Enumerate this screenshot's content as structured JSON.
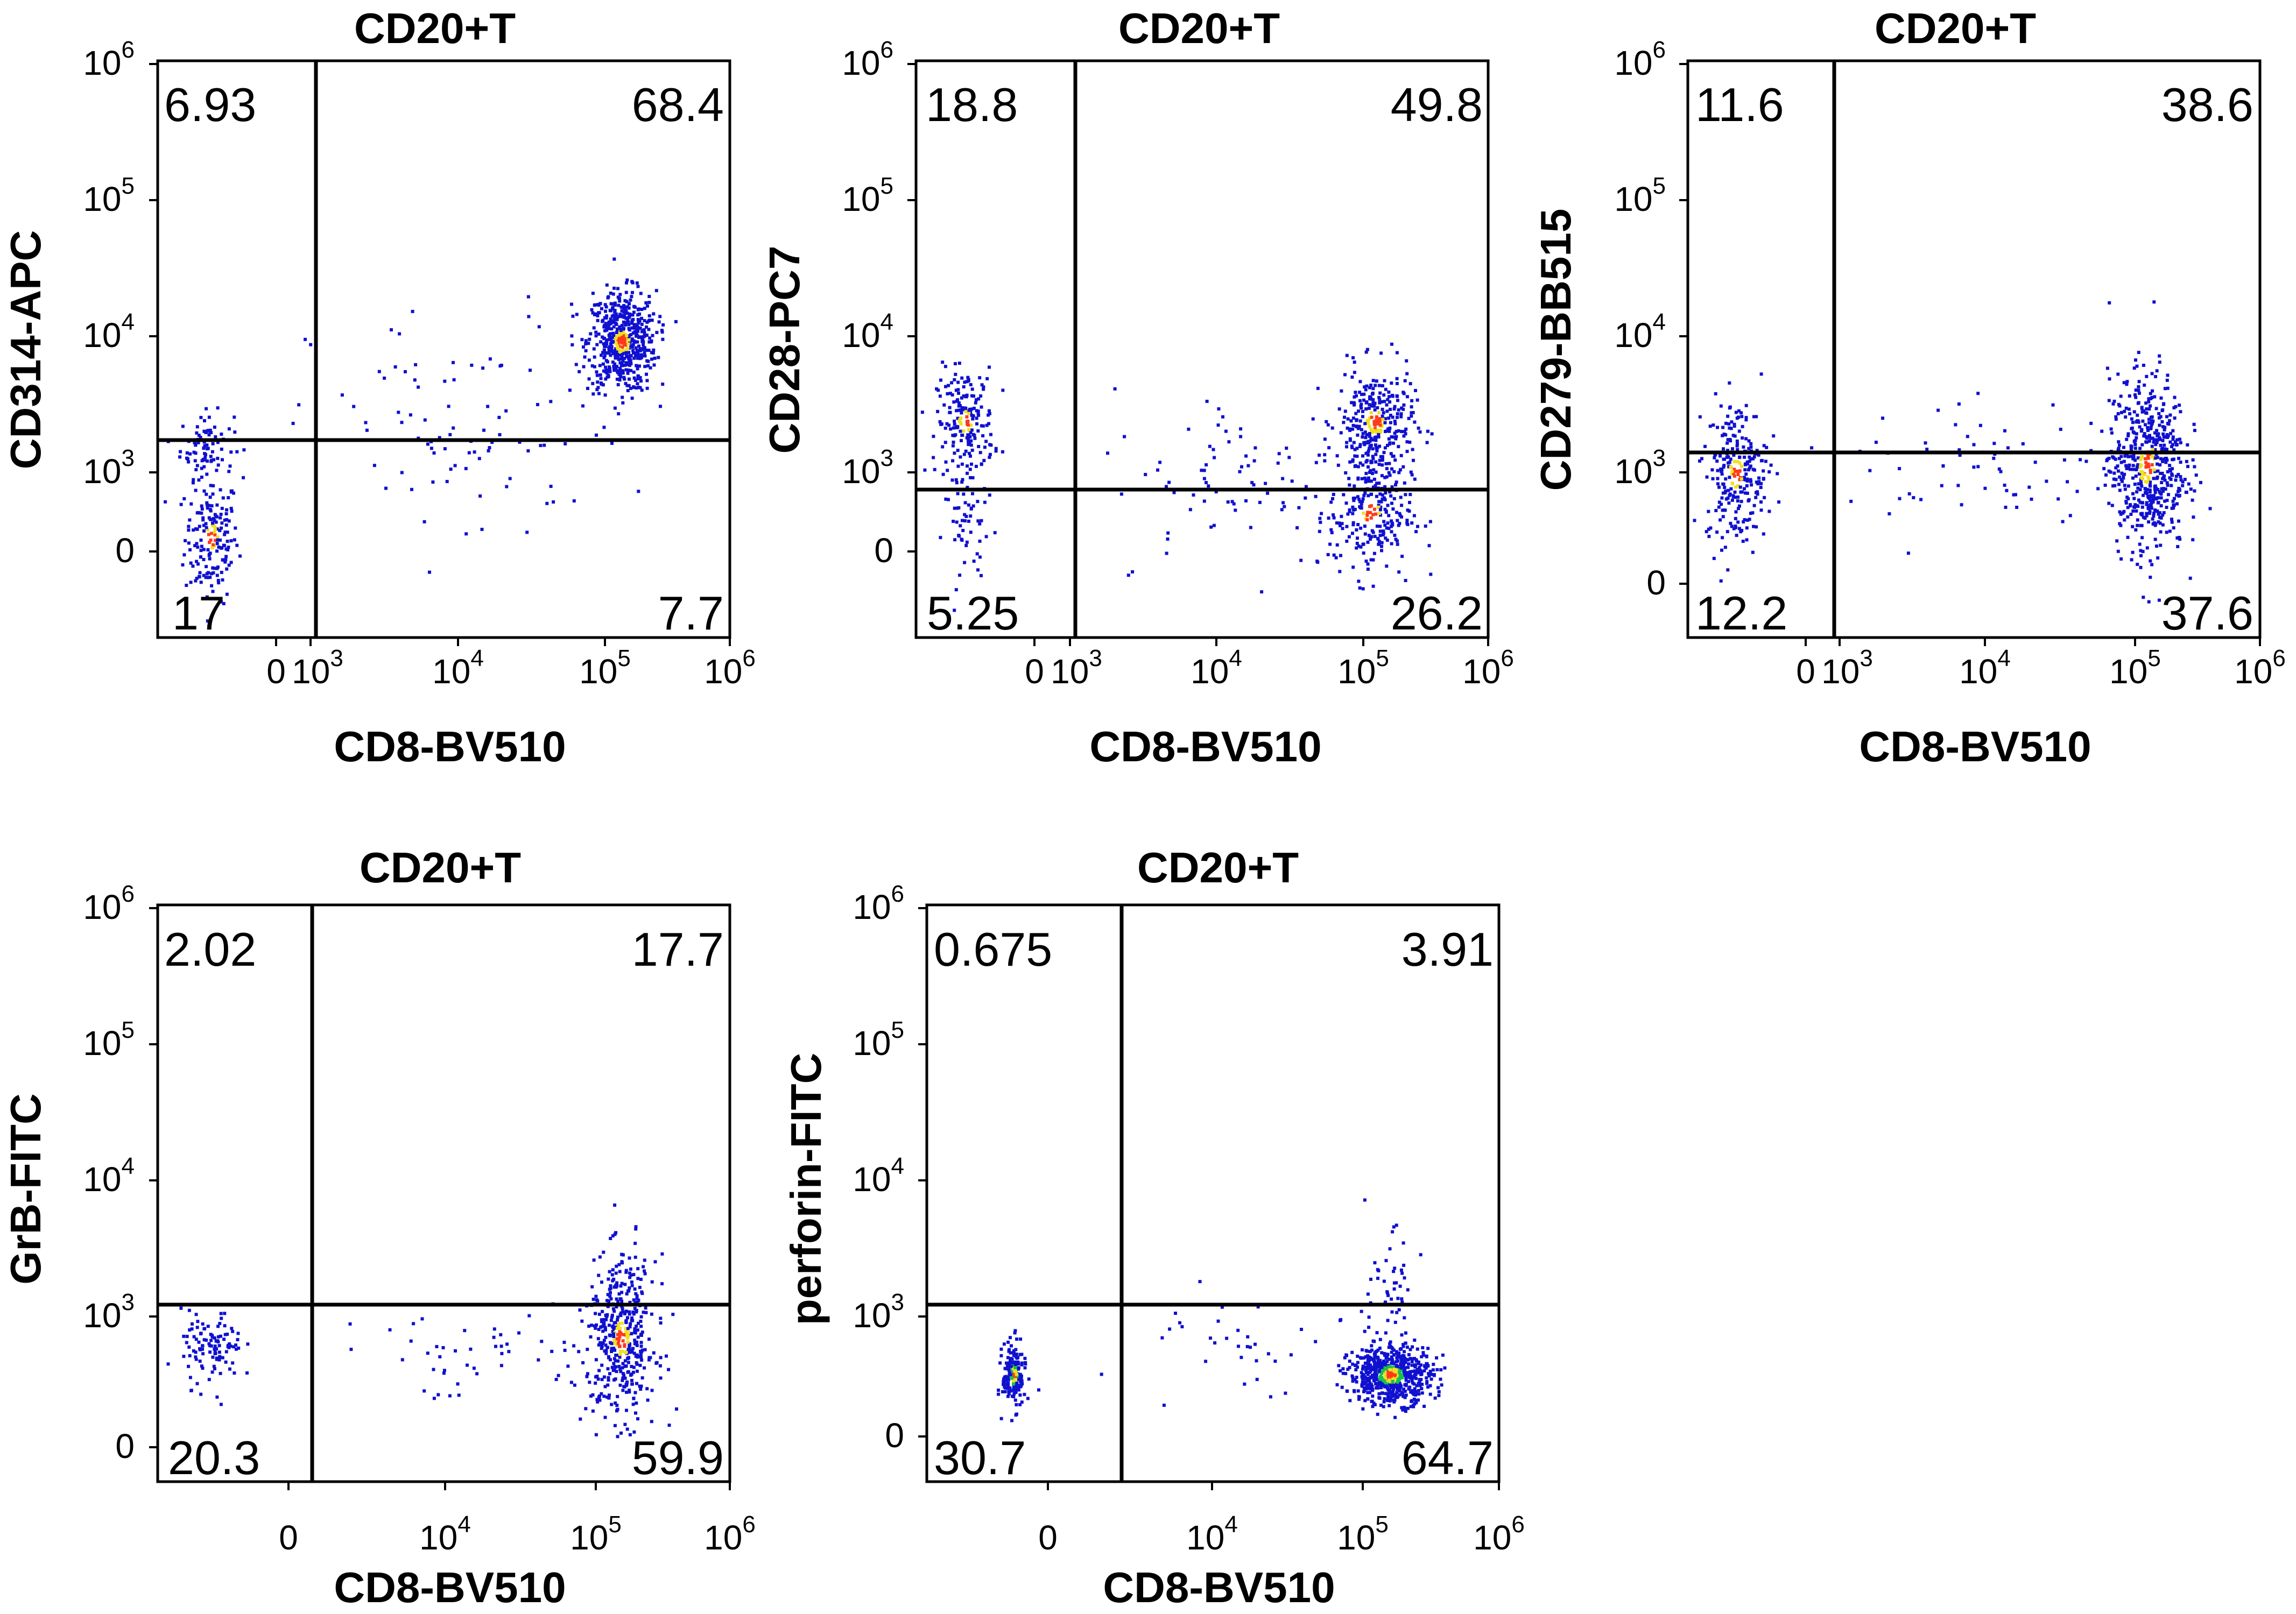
{
  "chart_data": [
    {
      "type": "scatter",
      "title": "CD20+T",
      "xlabel": "CD8-BV510",
      "ylabel": "CD314-APC",
      "x_ticks": [
        {
          "label": "0"
        },
        {
          "label": "10",
          "exp": "3"
        },
        {
          "label": "10",
          "exp": "4"
        },
        {
          "label": "10",
          "exp": "5"
        },
        {
          "label": "10",
          "exp": "6"
        }
      ],
      "y_ticks": [
        {
          "label": "0"
        },
        {
          "label": "10",
          "exp": "3"
        },
        {
          "label": "10",
          "exp": "4"
        },
        {
          "label": "10",
          "exp": "5"
        },
        {
          "label": "10",
          "exp": "6"
        }
      ],
      "quadrants": {
        "upper_left": "6.93",
        "upper_right": "68.4",
        "lower_left": "17",
        "lower_right": "7.7"
      },
      "gate": {
        "x_decades": 1.05,
        "y_decades": 1.8
      },
      "clusters": [
        {
          "x": 0.55,
          "y": 0.72,
          "sx": 0.14,
          "sy": 0.35,
          "n": 180
        },
        {
          "x": 0.5,
          "y": 1.75,
          "sx": 0.14,
          "sy": 0.18,
          "n": 80
        },
        {
          "x": 4.85,
          "y": 2.9,
          "sx": 0.18,
          "sy": 0.28,
          "n": 560
        },
        {
          "x": 3.2,
          "y": 1.9,
          "sx": 0.8,
          "sy": 0.7,
          "n": 90
        }
      ]
    },
    {
      "type": "scatter",
      "title": "CD20+T",
      "xlabel": "CD8-BV510",
      "ylabel": "CD28-PC7",
      "x_ticks": [
        {
          "label": "0"
        },
        {
          "label": "10",
          "exp": "3"
        },
        {
          "label": "10",
          "exp": "4"
        },
        {
          "label": "10",
          "exp": "5"
        },
        {
          "label": "10",
          "exp": "6"
        }
      ],
      "y_ticks": [
        {
          "label": "0"
        },
        {
          "label": "10",
          "exp": "3"
        },
        {
          "label": "10",
          "exp": "4"
        },
        {
          "label": "10",
          "exp": "5"
        },
        {
          "label": "10",
          "exp": "6"
        }
      ],
      "quadrants": {
        "upper_left": "18.8",
        "upper_right": "49.8",
        "lower_left": "5.25",
        "lower_right": "26.2"
      },
      "gate": {
        "x_decades": 1.05,
        "y_decades": 1.45
      },
      "clusters": [
        {
          "x": 0.5,
          "y": 2.0,
          "sx": 0.15,
          "sy": 0.3,
          "n": 200
        },
        {
          "x": 0.55,
          "y": 0.8,
          "sx": 0.13,
          "sy": 0.3,
          "n": 50
        },
        {
          "x": 4.8,
          "y": 2.0,
          "sx": 0.2,
          "sy": 0.3,
          "n": 300
        },
        {
          "x": 4.75,
          "y": 1.0,
          "sx": 0.22,
          "sy": 0.35,
          "n": 250
        },
        {
          "x": 3.4,
          "y": 1.4,
          "sx": 0.7,
          "sy": 0.5,
          "n": 80
        }
      ]
    },
    {
      "type": "scatter",
      "title": "CD20+T",
      "xlabel": "CD8-BV510",
      "ylabel": "CD279-BB515",
      "x_ticks": [
        {
          "label": "0"
        },
        {
          "label": "10",
          "exp": "3"
        },
        {
          "label": "10",
          "exp": "4"
        },
        {
          "label": "10",
          "exp": "5"
        },
        {
          "label": "10",
          "exp": "6"
        }
      ],
      "y_ticks": [
        {
          "label": "0"
        },
        {
          "label": "10",
          "exp": "3"
        },
        {
          "label": "10",
          "exp": "4"
        },
        {
          "label": "10",
          "exp": "5"
        },
        {
          "label": "10",
          "exp": "6"
        }
      ],
      "quadrants": {
        "upper_left": "11.6",
        "upper_right": "38.6",
        "lower_left": "12.2",
        "lower_right": "37.6"
      },
      "gate": {
        "x_decades": 0.95,
        "y_decades": 1.5
      },
      "clusters": [
        {
          "x": 0.5,
          "y": 1.45,
          "sx": 0.16,
          "sy": 0.4,
          "n": 260
        },
        {
          "x": 4.8,
          "y": 1.55,
          "sx": 0.2,
          "sy": 0.5,
          "n": 560
        },
        {
          "x": 3.2,
          "y": 1.5,
          "sx": 0.8,
          "sy": 0.4,
          "n": 70
        }
      ]
    },
    {
      "type": "scatter",
      "title": "CD20+T",
      "xlabel": "CD8-BV510",
      "ylabel": "GrB-FITC",
      "x_ticks": [
        {
          "label": "0"
        },
        {
          "label": "10",
          "exp": "4"
        },
        {
          "label": "10",
          "exp": "5"
        },
        {
          "label": "10",
          "exp": "6"
        }
      ],
      "y_ticks": [
        {
          "label": "0"
        },
        {
          "label": "10",
          "exp": "3"
        },
        {
          "label": "10",
          "exp": "4"
        },
        {
          "label": "10",
          "exp": "5"
        },
        {
          "label": "10",
          "exp": "6"
        }
      ],
      "quadrants": {
        "upper_left": "2.02",
        "upper_right": "17.7",
        "lower_left": "20.3",
        "lower_right": "59.9"
      },
      "gate": {
        "x_decades": 1.05,
        "y_decades": 1.25
      },
      "clusters": [
        {
          "x": 0.55,
          "y": 1.1,
          "sx": 0.16,
          "sy": 0.2,
          "n": 110
        },
        {
          "x": 4.85,
          "y": 1.2,
          "sx": 0.18,
          "sy": 0.45,
          "n": 440
        },
        {
          "x": 3.3,
          "y": 1.0,
          "sx": 0.8,
          "sy": 0.25,
          "n": 50
        }
      ]
    },
    {
      "type": "scatter",
      "title": "CD20+T",
      "xlabel": "CD8-BV510",
      "ylabel": "perforin-FITC",
      "x_ticks": [
        {
          "label": "0"
        },
        {
          "label": "10",
          "exp": "4"
        },
        {
          "label": "10",
          "exp": "5"
        },
        {
          "label": "10",
          "exp": "6"
        }
      ],
      "y_ticks": [
        {
          "label": "0"
        },
        {
          "label": "10",
          "exp": "3"
        },
        {
          "label": "10",
          "exp": "4"
        },
        {
          "label": "10",
          "exp": "5"
        },
        {
          "label": "10",
          "exp": "6"
        }
      ],
      "quadrants": {
        "upper_left": "0.675",
        "upper_right": "3.91",
        "lower_left": "30.7",
        "lower_right": "64.7"
      },
      "gate": {
        "x_decades": 1.35,
        "y_decades": 1.25
      },
      "clusters": [
        {
          "x": 0.9,
          "y": 0.8,
          "sx": 0.06,
          "sy": 0.18,
          "n": 180
        },
        {
          "x": 4.85,
          "y": 0.8,
          "sx": 0.22,
          "sy": 0.16,
          "n": 600
        },
        {
          "x": 4.8,
          "y": 1.6,
          "sx": 0.15,
          "sy": 0.4,
          "n": 60
        },
        {
          "x": 3.3,
          "y": 1.0,
          "sx": 0.8,
          "sy": 0.3,
          "n": 40
        }
      ]
    }
  ],
  "colors": {
    "dots": "#1010d0",
    "dense_warm": "#ff3a1a",
    "dense_mid": "#f0e020",
    "dense_cool": "#18c050"
  }
}
